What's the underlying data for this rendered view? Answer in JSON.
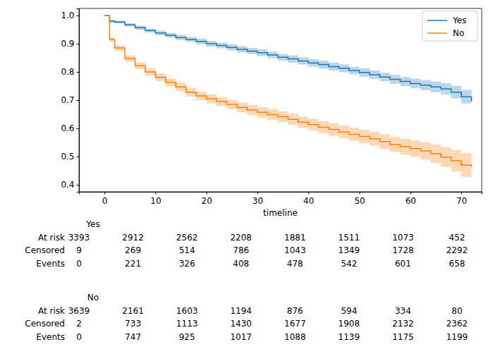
{
  "chart_data": {
    "type": "line",
    "xlabel": "timeline",
    "line_style": "steps",
    "legend": "upper right",
    "x": [
      0,
      1,
      2,
      4,
      6,
      8,
      10,
      12,
      14,
      16,
      18,
      20,
      22,
      24,
      26,
      28,
      30,
      32,
      34,
      36,
      38,
      40,
      42,
      44,
      46,
      48,
      50,
      52,
      54,
      56,
      58,
      60,
      62,
      64,
      66,
      68,
      70,
      72
    ],
    "series": [
      {
        "name": "Yes",
        "color": "#1f77b4",
        "values": [
          1.0,
          0.98,
          0.977,
          0.967,
          0.957,
          0.947,
          0.938,
          0.93,
          0.922,
          0.915,
          0.908,
          0.9,
          0.894,
          0.887,
          0.88,
          0.874,
          0.868,
          0.86,
          0.852,
          0.846,
          0.839,
          0.832,
          0.826,
          0.819,
          0.813,
          0.805,
          0.798,
          0.79,
          0.782,
          0.774,
          0.766,
          0.759,
          0.753,
          0.747,
          0.74,
          0.728,
          0.712,
          0.695
        ],
        "lower": [
          1.0,
          0.975,
          0.972,
          0.961,
          0.95,
          0.94,
          0.93,
          0.922,
          0.913,
          0.906,
          0.898,
          0.89,
          0.884,
          0.876,
          0.869,
          0.863,
          0.856,
          0.848,
          0.84,
          0.833,
          0.826,
          0.819,
          0.812,
          0.805,
          0.799,
          0.791,
          0.783,
          0.775,
          0.767,
          0.758,
          0.75,
          0.742,
          0.735,
          0.728,
          0.72,
          0.706,
          0.688,
          0.668
        ],
        "upper": [
          1.0,
          0.985,
          0.982,
          0.973,
          0.964,
          0.954,
          0.946,
          0.938,
          0.931,
          0.924,
          0.918,
          0.91,
          0.904,
          0.898,
          0.891,
          0.885,
          0.88,
          0.872,
          0.864,
          0.859,
          0.852,
          0.845,
          0.84,
          0.833,
          0.827,
          0.819,
          0.813,
          0.805,
          0.797,
          0.79,
          0.782,
          0.776,
          0.771,
          0.766,
          0.76,
          0.75,
          0.736,
          0.722
        ]
      },
      {
        "name": "No",
        "color": "#ff7f0e",
        "values": [
          1.0,
          0.915,
          0.885,
          0.848,
          0.822,
          0.8,
          0.781,
          0.763,
          0.747,
          0.728,
          0.715,
          0.705,
          0.695,
          0.685,
          0.674,
          0.665,
          0.657,
          0.649,
          0.641,
          0.632,
          0.622,
          0.613,
          0.604,
          0.596,
          0.587,
          0.579,
          0.571,
          0.563,
          0.553,
          0.543,
          0.535,
          0.528,
          0.52,
          0.51,
          0.498,
          0.485,
          0.47,
          0.463
        ],
        "lower": [
          1.0,
          0.906,
          0.875,
          0.836,
          0.81,
          0.787,
          0.767,
          0.749,
          0.732,
          0.713,
          0.7,
          0.689,
          0.679,
          0.668,
          0.657,
          0.647,
          0.639,
          0.63,
          0.622,
          0.612,
          0.602,
          0.592,
          0.583,
          0.574,
          0.564,
          0.556,
          0.547,
          0.538,
          0.527,
          0.516,
          0.507,
          0.499,
          0.489,
          0.477,
          0.463,
          0.447,
          0.428,
          0.418
        ],
        "upper": [
          1.0,
          0.924,
          0.895,
          0.859,
          0.834,
          0.813,
          0.795,
          0.777,
          0.762,
          0.743,
          0.73,
          0.721,
          0.711,
          0.702,
          0.691,
          0.683,
          0.675,
          0.668,
          0.66,
          0.652,
          0.642,
          0.634,
          0.625,
          0.618,
          0.61,
          0.602,
          0.595,
          0.588,
          0.579,
          0.57,
          0.563,
          0.557,
          0.551,
          0.543,
          0.533,
          0.523,
          0.512,
          0.508
        ]
      }
    ],
    "xlim": [
      -5,
      74
    ],
    "ylim": [
      0.375,
      1.025
    ],
    "xticks": [
      0,
      10,
      20,
      30,
      40,
      50,
      60,
      70
    ],
    "yticks": [
      0.4,
      0.5,
      0.6,
      0.7,
      0.8,
      0.9,
      {
        "value": 1,
        "label": "1.0"
      }
    ]
  },
  "at_risk_table": {
    "groups": [
      {
        "name": "Yes",
        "rows": [
          {
            "label": "At risk",
            "values": [
              3393,
              2912,
              2562,
              2208,
              1881,
              1511,
              1073,
              452
            ]
          },
          {
            "label": "Censored",
            "values": [
              9,
              269,
              514,
              786,
              1043,
              1349,
              1728,
              2292
            ]
          },
          {
            "label": "Events",
            "values": [
              0,
              221,
              326,
              408,
              478,
              542,
              601,
              658
            ]
          }
        ]
      },
      {
        "name": "No",
        "rows": [
          {
            "label": "At risk",
            "values": [
              3639,
              2161,
              1603,
              1194,
              876,
              594,
              334,
              80
            ]
          },
          {
            "label": "Censored",
            "values": [
              2,
              733,
              1113,
              1430,
              1677,
              1908,
              2132,
              2362
            ]
          },
          {
            "label": "Events",
            "values": [
              0,
              747,
              925,
              1017,
              1088,
              1139,
              1175,
              1199
            ]
          }
        ]
      }
    ]
  }
}
